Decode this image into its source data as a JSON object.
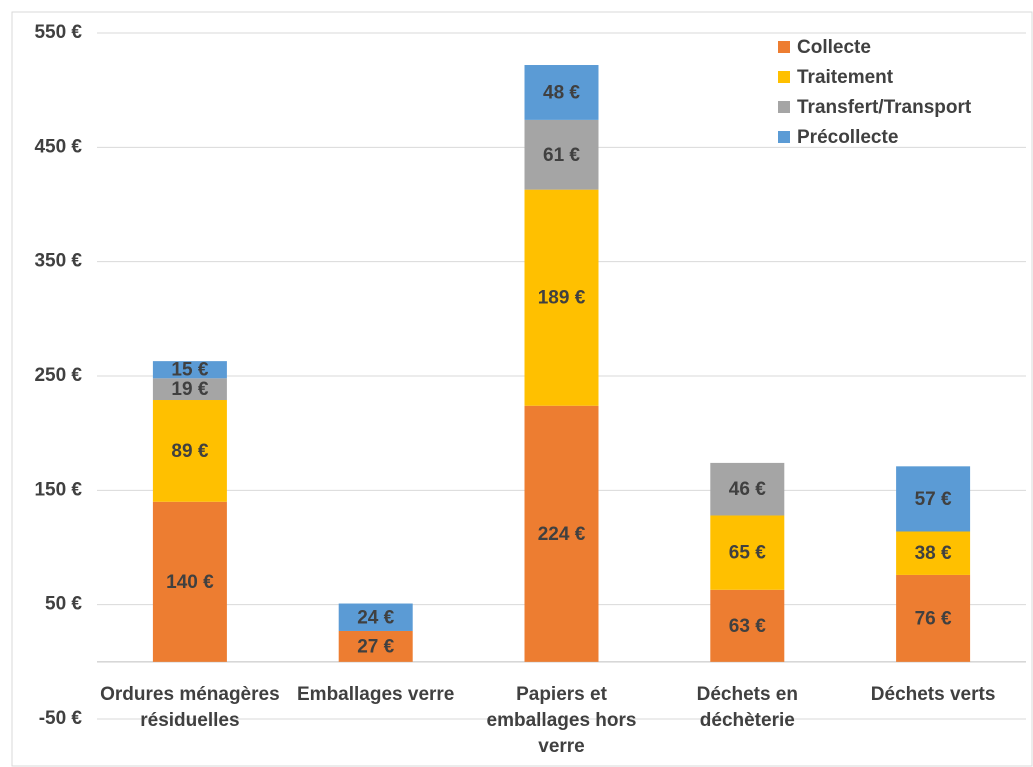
{
  "chart_data": {
    "type": "stacked_bar",
    "categories": [
      "Ordures ménagères résiduelles",
      "Emballages verre",
      "Papiers et emballages hors verre",
      "Déchets en déchèterie",
      "Déchets verts"
    ],
    "series": [
      {
        "name": "Collecte",
        "color": "#ED7D31",
        "values": [
          140,
          27,
          224,
          63,
          76
        ],
        "value_labels": [
          "140 €",
          "27 €",
          "224 €",
          "63 €",
          "76 €"
        ]
      },
      {
        "name": "Traitement",
        "color": "#FFC000",
        "values": [
          89,
          null,
          189,
          65,
          38
        ],
        "value_labels": [
          "89 €",
          null,
          "189 €",
          "65 €",
          "38 €"
        ]
      },
      {
        "name": "Transfert/Transport",
        "color": "#A5A5A5",
        "values": [
          19,
          null,
          61,
          46,
          null
        ],
        "value_labels": [
          "19 €",
          null,
          "61 €",
          "46 €",
          null
        ]
      },
      {
        "name": "Précollecte",
        "color": "#5B9BD5",
        "values": [
          15,
          24,
          48,
          null,
          57
        ],
        "value_labels": [
          "15 €",
          "24 €",
          "48 €",
          null,
          "57 €"
        ]
      }
    ],
    "ylim": [
      -50,
      550
    ],
    "yticks": [
      {
        "value": -50,
        "label": "-50 €"
      },
      {
        "value": 50,
        "label": "50 €"
      },
      {
        "value": 150,
        "label": "150 €"
      },
      {
        "value": 250,
        "label": "250 €"
      },
      {
        "value": 350,
        "label": "350 €"
      },
      {
        "value": 450,
        "label": "450 €"
      },
      {
        "value": 550,
        "label": "550 €"
      }
    ],
    "grid": true,
    "legend": "top-right"
  }
}
